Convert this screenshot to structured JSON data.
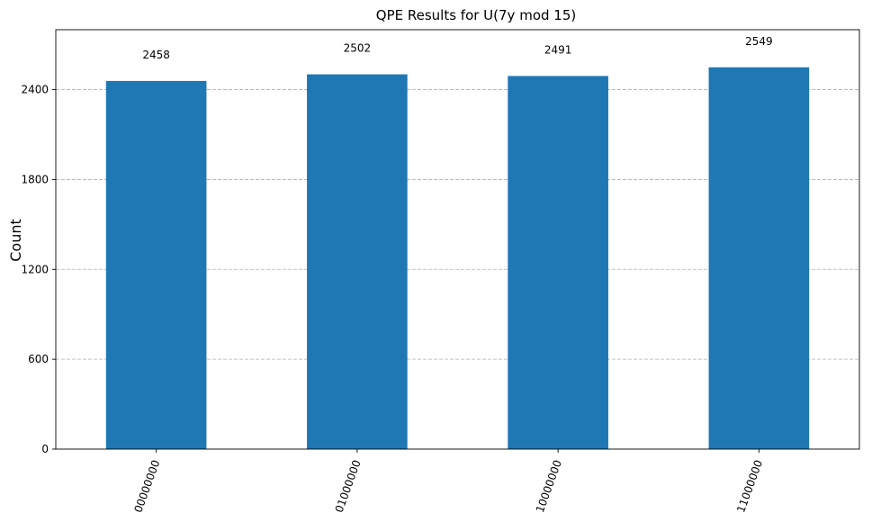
{
  "chart_data": {
    "type": "bar",
    "title": "QPE Results for U(7y mod 15)",
    "xlabel": "",
    "ylabel": "Count",
    "categories": [
      "00000000",
      "01000000",
      "10000000",
      "11000000"
    ],
    "values": [
      2458,
      2502,
      2491,
      2549
    ],
    "ylim": [
      0,
      2800
    ],
    "yticks": [
      0,
      600,
      1200,
      1800,
      2400
    ],
    "grid": true,
    "bar_color": "#1f77b4"
  }
}
